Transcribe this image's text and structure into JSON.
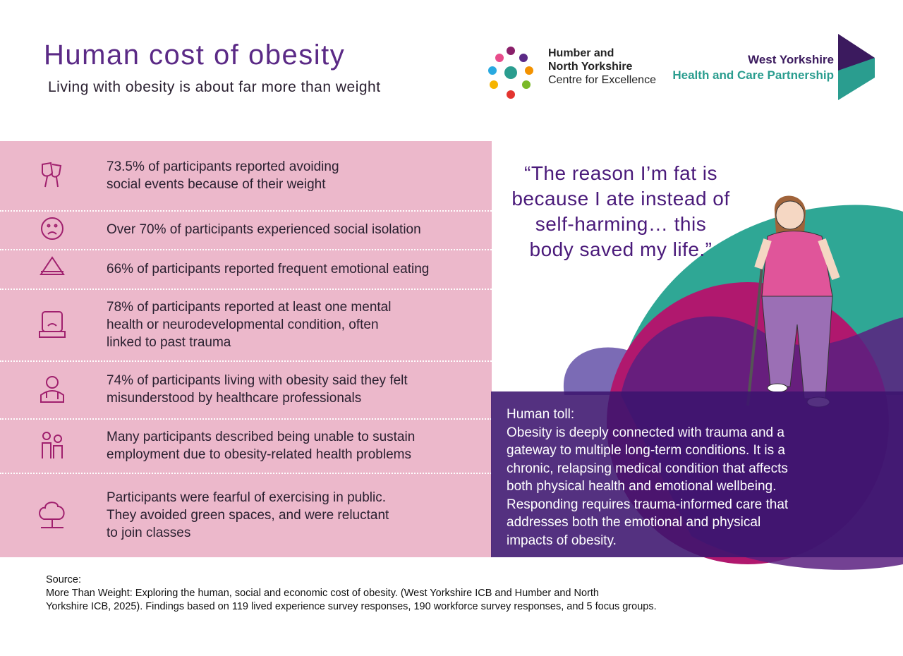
{
  "header": {
    "title": "Human cost of obesity",
    "subtitle": "Living with obesity is about far more than weight"
  },
  "logos": [
    {
      "lines": [
        "Humber and",
        "North Yorkshire",
        "Centre for Excellence"
      ]
    },
    {
      "lines": [
        "West Yorkshire",
        "Health and Care Partnership"
      ]
    }
  ],
  "findings": [
    {
      "lines": [
        "73.5% of participants reported avoiding",
        "social events because of their weight"
      ]
    },
    {
      "lines": [
        "Over 70% of participants experienced social isolation"
      ]
    },
    {
      "lines": [
        "66% of participants reported frequent emotional eating"
      ]
    },
    {
      "lines": [
        "78% of participants reported at least one mental",
        "health or neurodevelopmental condition, often",
        "linked to past trauma"
      ]
    },
    {
      "lines": [
        "74% of participants living with obesity said they felt",
        "misunderstood by healthcare professionals"
      ]
    },
    {
      "lines": [
        "Many participants described being unable to sustain",
        "employment due to obesity-related health problems"
      ]
    },
    {
      "lines": [
        "Participants were fearful of exercising in public.",
        "They avoided green spaces, and were reluctant",
        "to join classes"
      ]
    }
  ],
  "quote": {
    "lines": [
      "“The reason I’m fat is",
      "because I ate instead of",
      "self-harming… this",
      "body saved my life.”"
    ]
  },
  "toll": {
    "heading": "Human toll:",
    "lines": [
      "Obesity is deeply connected with trauma and a",
      "gateway to multiple long-term conditions. It is a",
      "chronic, relapsing medical condition that affects",
      "both physical health and emotional wellbeing.",
      "Responding requires trauma-informed care that",
      "addresses both the emotional and physical",
      "impacts of obesity."
    ]
  },
  "source": {
    "heading": "Source:",
    "lines": [
      "More Than Weight: Exploring the human, social and economic cost of obesity. (West Yorkshire ICB and Humber and North",
      "Yorkshire ICB, 2025). Findings based on 119 lived experience survey responses, 190 workforce survey responses, and 5 focus groups."
    ]
  }
}
